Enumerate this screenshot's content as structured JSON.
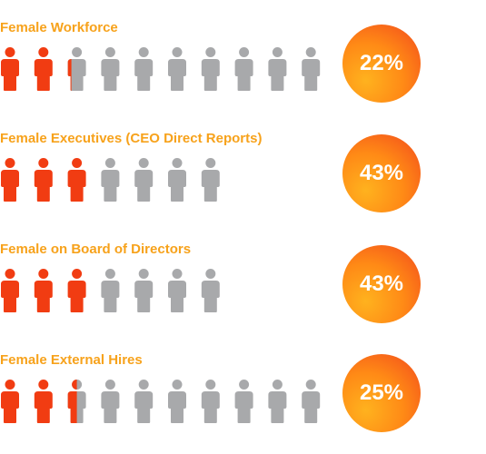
{
  "chart_data": {
    "type": "pictograph",
    "colors": {
      "female": "#F13C12",
      "other": "#A8A9AB",
      "title": "#F7A21B",
      "badge_light": "#FFB21E",
      "badge_dark": "#F2491C"
    },
    "rows": [
      {
        "label": "Female Workforce",
        "value_label": "22%",
        "percent": 22,
        "icons_total": 10,
        "icons_female": 2.2
      },
      {
        "label": "Female Executives (CEO Direct Reports)",
        "value_label": "43%",
        "percent": 43,
        "icons_total": 7,
        "icons_female": 3
      },
      {
        "label": "Female on Board of Directors",
        "value_label": "43%",
        "percent": 43,
        "icons_total": 7,
        "icons_female": 3
      },
      {
        "label": "Female External Hires",
        "value_label": "25%",
        "percent": 25,
        "icons_total": 10,
        "icons_female": 2.5
      }
    ]
  }
}
